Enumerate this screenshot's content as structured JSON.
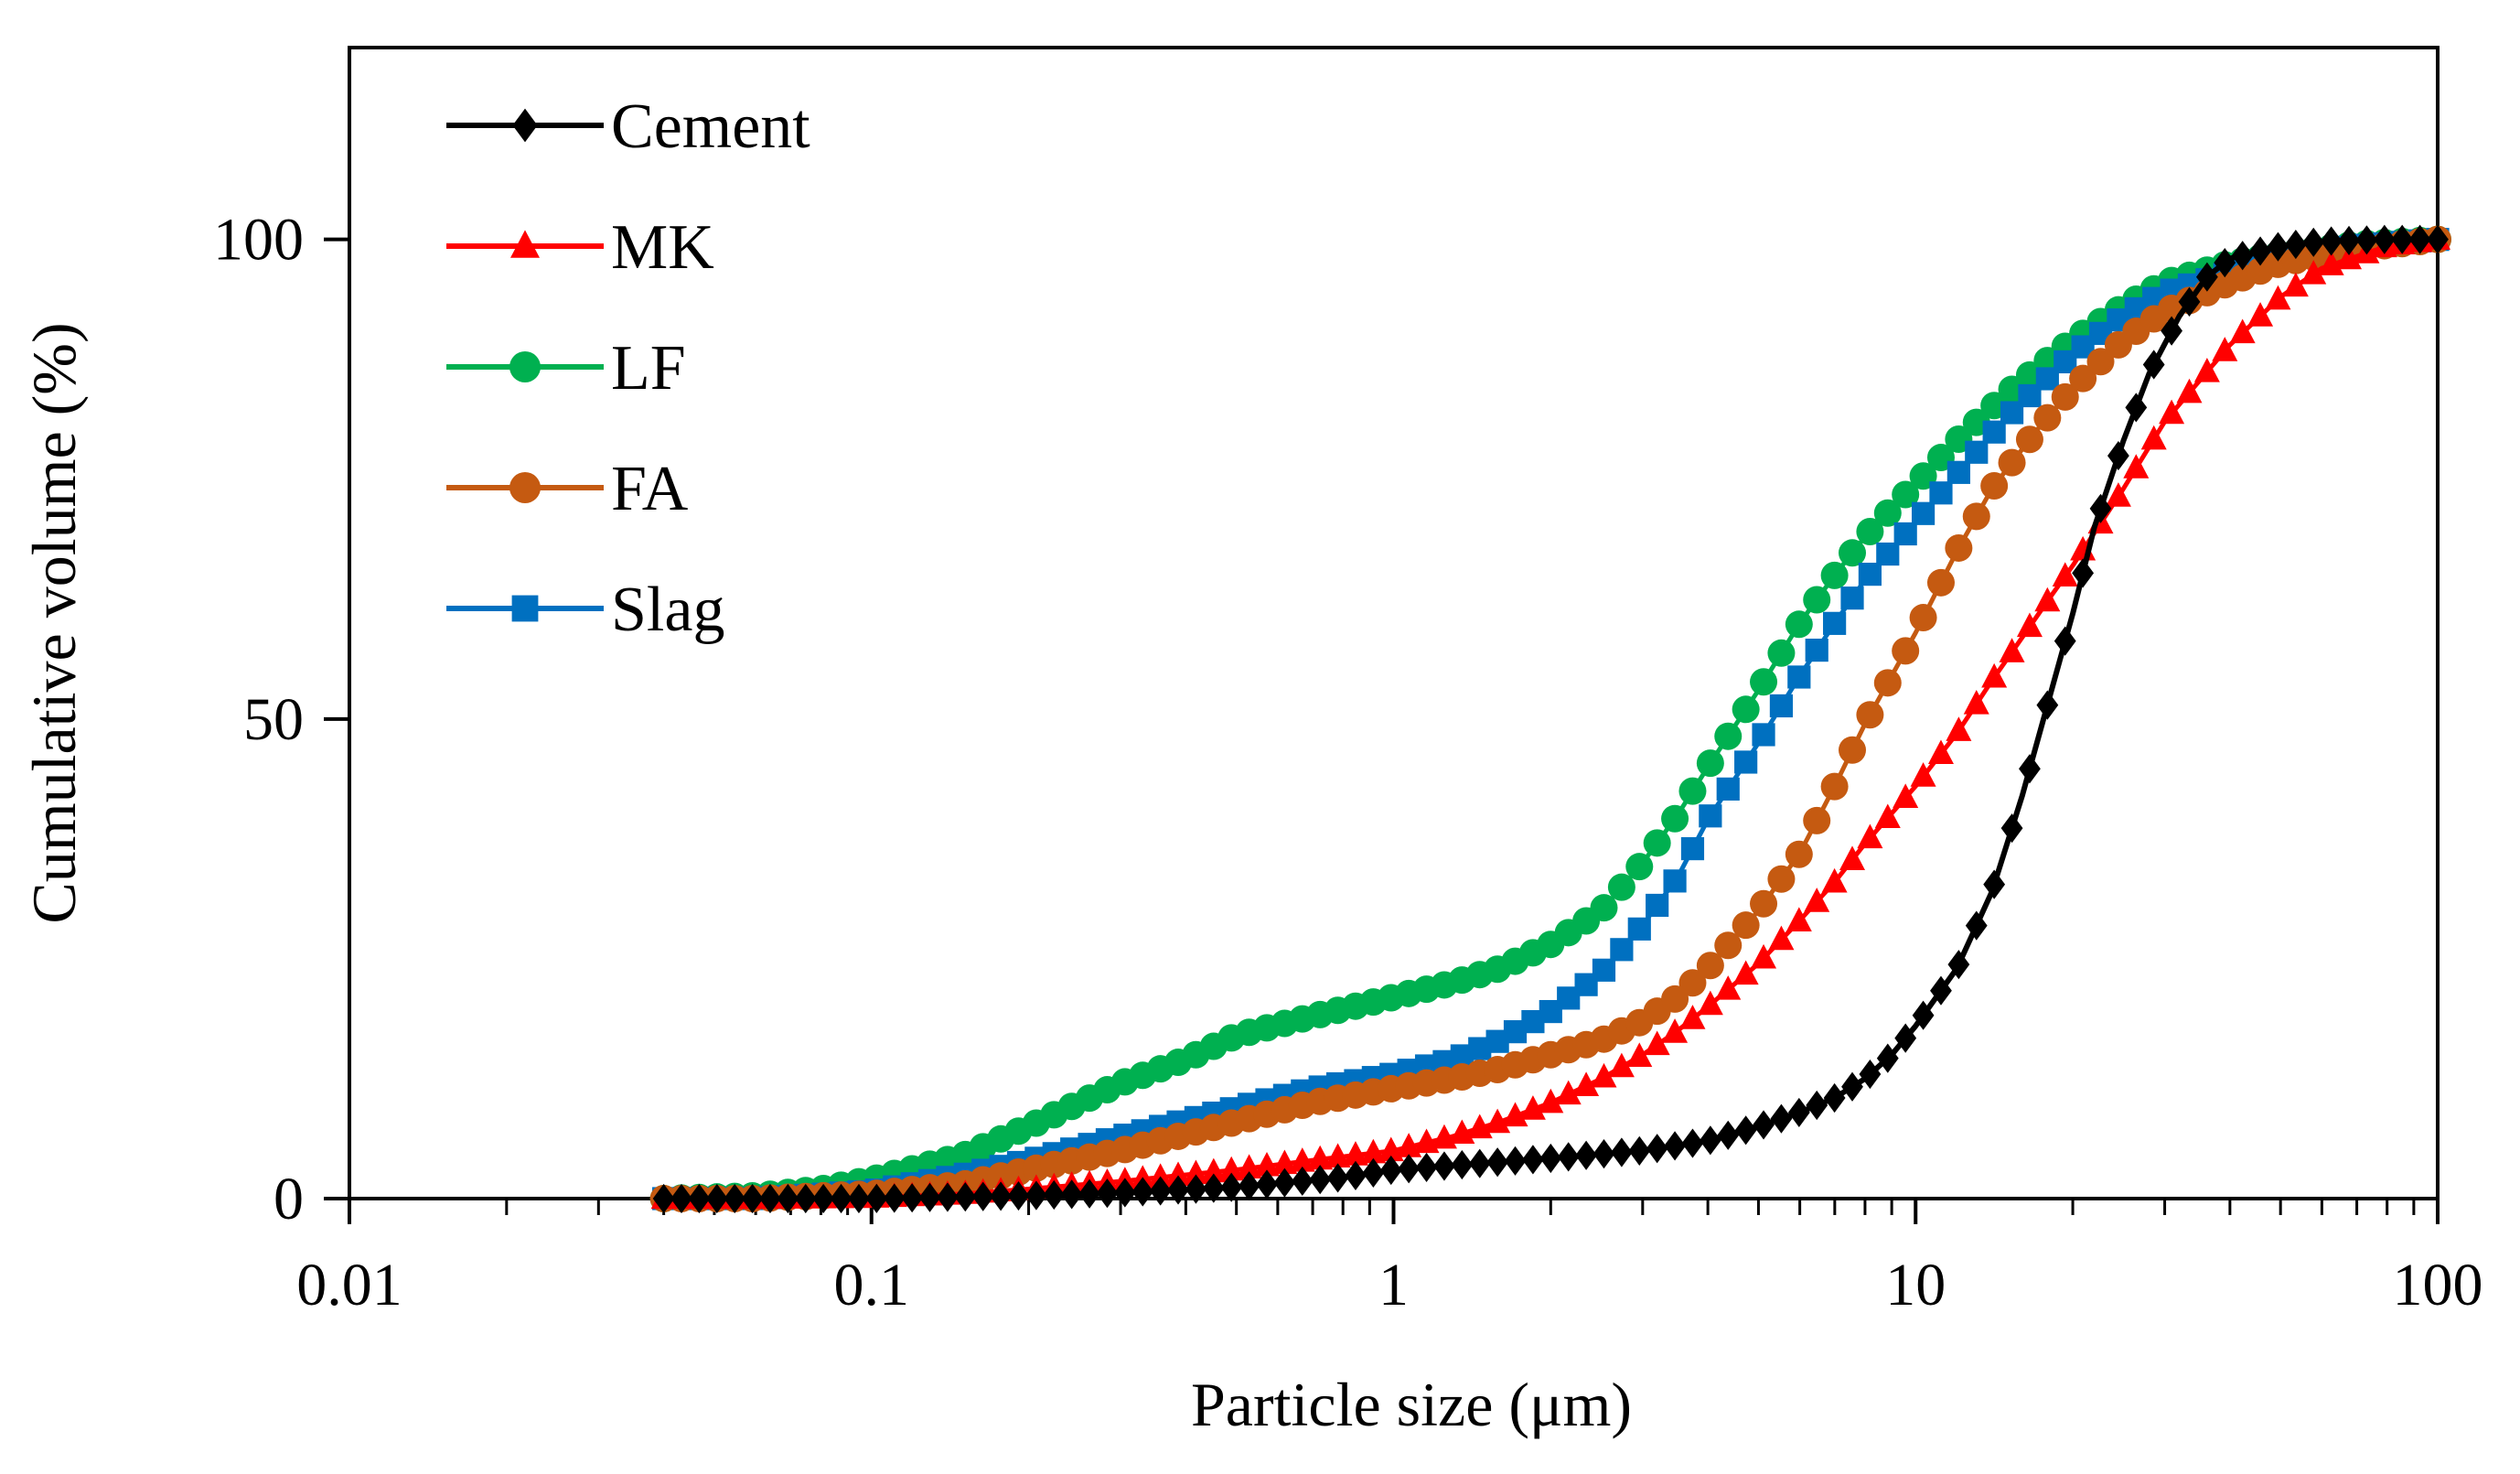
{
  "chart_data": {
    "type": "line",
    "title": "",
    "xlabel": "Particle size (μm)",
    "ylabel": "Cumulative volume (%)",
    "x_scale": "log",
    "xlim": [
      0.01,
      100
    ],
    "ylim": [
      0,
      120
    ],
    "x_ticks": [
      {
        "value": 0.01,
        "label": "0.01"
      },
      {
        "value": 0.1,
        "label": "0.1"
      },
      {
        "value": 1,
        "label": "1"
      },
      {
        "value": 10,
        "label": "10"
      },
      {
        "value": 100,
        "label": "100"
      }
    ],
    "y_ticks": [
      {
        "value": 0,
        "label": "0"
      },
      {
        "value": 50,
        "label": "50"
      },
      {
        "value": 100,
        "label": "100"
      }
    ],
    "legend_position": "top-left",
    "series": [
      {
        "name": "Cement",
        "color": "#000000",
        "marker": "diamond",
        "x": [
          0.04,
          0.06,
          0.1,
          0.2,
          0.3,
          0.5,
          0.8,
          1,
          1.5,
          2,
          3,
          4,
          5,
          6,
          7,
          8,
          9,
          10,
          12,
          14,
          16,
          18,
          20,
          22,
          25,
          28,
          32,
          36,
          40,
          50,
          60,
          80,
          100
        ],
        "y": [
          0,
          0,
          0,
          0.3,
          0.6,
          1.2,
          2.2,
          3,
          3.7,
          4.2,
          5,
          6,
          7.5,
          9,
          10.5,
          12.5,
          15,
          18,
          24,
          32,
          42,
          52,
          61,
          70,
          79,
          86,
          92,
          96,
          98,
          99.3,
          99.8,
          100,
          100
        ]
      },
      {
        "name": "MK",
        "color": "#ff0000",
        "marker": "triangle",
        "x": [
          0.04,
          0.06,
          0.1,
          0.15,
          0.2,
          0.3,
          0.5,
          0.7,
          1,
          1.3,
          1.6,
          2,
          2.5,
          3,
          3.5,
          4,
          5,
          6,
          7,
          8,
          10,
          12,
          14,
          16,
          18,
          20,
          25,
          30,
          40,
          50,
          60,
          80,
          100
        ],
        "y": [
          0,
          0,
          0.1,
          0.5,
          1,
          1.8,
          3,
          4,
          5,
          6.5,
          8,
          10,
          12.5,
          15,
          17.5,
          20,
          24.5,
          29,
          33,
          37,
          43,
          48.5,
          54,
          58.5,
          62.5,
          66,
          74,
          81,
          89,
          94,
          97,
          99.3,
          100
        ]
      },
      {
        "name": "LF",
        "color": "#00b050",
        "marker": "circle",
        "x": [
          0.04,
          0.06,
          0.08,
          0.1,
          0.15,
          0.2,
          0.3,
          0.4,
          0.5,
          0.7,
          1,
          1.3,
          1.6,
          2,
          2.5,
          3,
          3.5,
          4,
          5,
          6,
          7,
          8,
          10,
          12,
          15,
          20,
          25,
          30,
          40,
          50,
          70,
          100
        ],
        "y": [
          0,
          0.3,
          1,
          2,
          4.5,
          7.5,
          12,
          14.5,
          17,
          19,
          21,
          22.5,
          24,
          26.5,
          30,
          35,
          40,
          45,
          53,
          60,
          65,
          69,
          74.5,
          79,
          84,
          89.5,
          93,
          95.5,
          97.5,
          98.5,
          99.5,
          100
        ]
      },
      {
        "name": "FA",
        "color": "#c55a11",
        "marker": "circle",
        "x": [
          0.04,
          0.06,
          0.1,
          0.15,
          0.2,
          0.3,
          0.5,
          0.7,
          1,
          1.3,
          1.6,
          2,
          2.5,
          3,
          3.5,
          4,
          5,
          6,
          7,
          8,
          10,
          12,
          14,
          17,
          20,
          25,
          30,
          40,
          50,
          70,
          100
        ],
        "y": [
          0,
          0,
          0.5,
          1.5,
          3,
          5,
          8,
          10,
          11.5,
          12.5,
          13.5,
          15,
          16.5,
          18.5,
          21,
          24,
          30,
          36,
          43,
          49.5,
          59,
          67.5,
          74,
          80,
          84.5,
          89.5,
          92.5,
          95.5,
          97.5,
          99,
          100
        ]
      },
      {
        "name": "Slag",
        "color": "#0070c0",
        "marker": "square",
        "x": [
          0.04,
          0.06,
          0.1,
          0.15,
          0.2,
          0.3,
          0.5,
          0.7,
          1,
          1.3,
          1.6,
          2,
          2.5,
          3,
          3.5,
          4,
          5,
          6,
          7,
          8,
          10,
          12,
          15,
          20,
          25,
          30,
          40,
          50,
          70,
          100
        ],
        "y": [
          0,
          0,
          0.8,
          2.5,
          4,
          6.5,
          9.5,
          11.5,
          13,
          14.5,
          16.5,
          19.5,
          23.5,
          28.5,
          33.5,
          39.5,
          47.5,
          54.5,
          60,
          64.5,
          70.5,
          75.5,
          81.5,
          88,
          92,
          94.5,
          96.5,
          98,
          99.3,
          100
        ]
      }
    ]
  }
}
